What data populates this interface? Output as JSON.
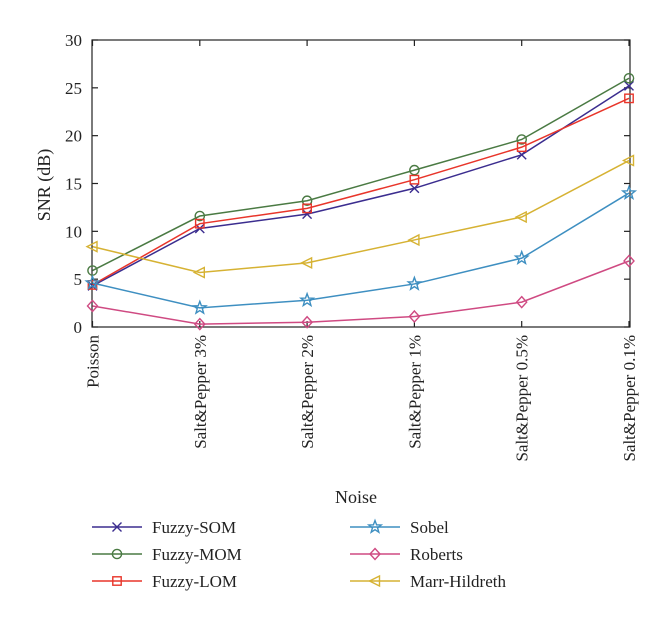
{
  "chart_data": {
    "type": "line",
    "title": "",
    "xlabel": "Noise",
    "ylabel": "SNR (dB)",
    "ylim": [
      0,
      30
    ],
    "yticks": [
      0,
      5,
      10,
      15,
      20,
      25,
      30
    ],
    "grid": false,
    "legend_position": "bottom",
    "categories": [
      "Poisson",
      "Salt&Pepper 3%",
      "Salt&Pepper 2%",
      "Salt&Pepper 1%",
      "Salt&Pepper 0.5%",
      "Salt&Pepper 0.1%"
    ],
    "series": [
      {
        "name": "Fuzzy-SOM",
        "color": "#3b2d8f",
        "marker": "x",
        "values": [
          4.3,
          10.3,
          11.8,
          14.5,
          18.0,
          25.2
        ]
      },
      {
        "name": "Fuzzy-MOM",
        "color": "#4a7a43",
        "marker": "circle",
        "values": [
          5.9,
          11.6,
          13.2,
          16.4,
          19.6,
          26.0
        ]
      },
      {
        "name": "Fuzzy-LOM",
        "color": "#e8352a",
        "marker": "square",
        "values": [
          4.4,
          10.8,
          12.4,
          15.4,
          18.8,
          23.9
        ]
      },
      {
        "name": "Sobel",
        "color": "#3e8fc1",
        "marker": "star",
        "values": [
          4.6,
          2.0,
          2.8,
          4.5,
          7.2,
          14.0
        ]
      },
      {
        "name": "Roberts",
        "color": "#cf4a82",
        "marker": "diamond",
        "values": [
          2.2,
          0.3,
          0.5,
          1.1,
          2.6,
          6.9
        ]
      },
      {
        "name": "Marr-Hildreth",
        "color": "#d6b233",
        "marker": "triangle-left",
        "values": [
          8.4,
          5.7,
          6.7,
          9.1,
          11.5,
          17.4
        ]
      }
    ]
  }
}
